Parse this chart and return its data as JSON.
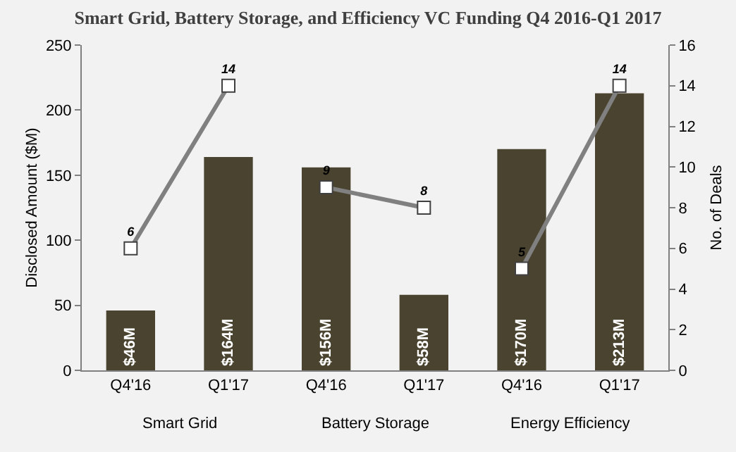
{
  "chart_data": {
    "type": "bar",
    "title": "Smart Grid, Battery Storage, and Efficiency VC Funding Q4 2016-Q1 2017",
    "ylabel": "Disclosed Amount ($M)",
    "y2label": "No. of Deals",
    "categories": [
      "Q4'16",
      "Q1'17",
      "Q4'16",
      "Q1'17",
      "Q4'16",
      "Q1'17"
    ],
    "annotations": [
      "Smart Grid",
      "Battery Storage",
      "Energy Efficiency"
    ],
    "series": [
      {
        "color": "#4a4330",
        "values": [
          46,
          164,
          156,
          58,
          170,
          213
        ],
        "value_labels": [
          "$46M",
          "$164M",
          "$156M",
          "$58M",
          "$170M",
          "$213M"
        ]
      },
      {
        "type": "line",
        "axis": "y2",
        "color": "#808080",
        "values": [
          6,
          14,
          null,
          null,
          null,
          null
        ],
        "value_labels": [
          "6",
          "14",
          null,
          null,
          null,
          null
        ]
      },
      {
        "type": "line",
        "axis": "y2",
        "color": "#808080",
        "values": [
          null,
          null,
          9,
          8,
          null,
          null
        ],
        "value_labels": [
          null,
          null,
          "9",
          "8",
          null,
          null
        ]
      },
      {
        "type": "line",
        "axis": "y2",
        "color": "#808080",
        "values": [
          null,
          null,
          null,
          null,
          5,
          14
        ],
        "value_labels": [
          null,
          null,
          null,
          null,
          "5",
          "14"
        ]
      }
    ],
    "ylim": [
      0,
      250
    ],
    "yticks": [
      0,
      50,
      100,
      150,
      200,
      250
    ],
    "y2lim": [
      0,
      16
    ],
    "y2ticks": [
      0,
      2,
      4,
      6,
      8,
      10,
      12,
      14,
      16
    ],
    "marker": "square",
    "line_style": "solid",
    "grid": false
  }
}
